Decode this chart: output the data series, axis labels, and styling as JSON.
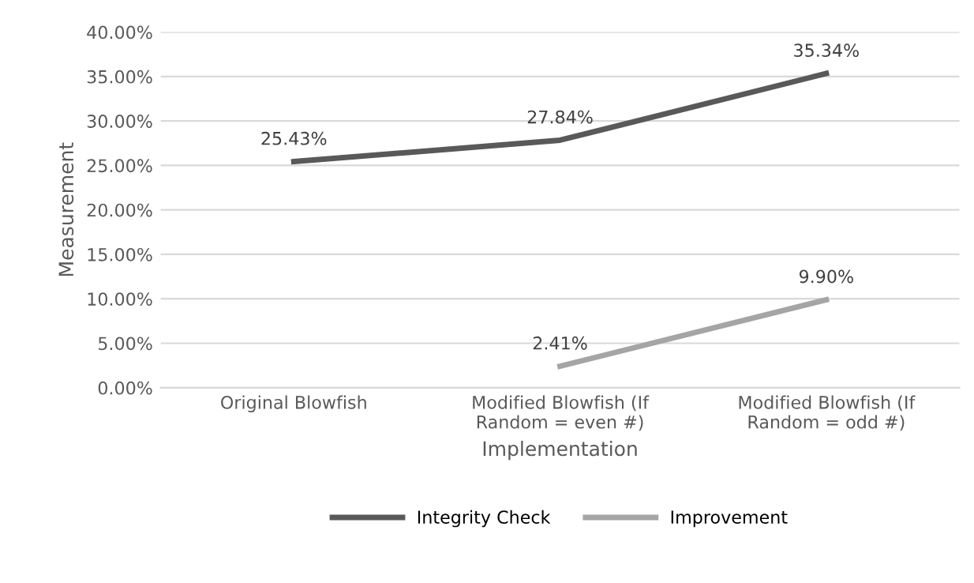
{
  "chart_data": {
    "type": "line",
    "xlabel": "Implementation",
    "ylabel": "Measurement",
    "categories": [
      "Original Blowfish",
      "Modified Blowfish (If Random = even #)",
      "Modified Blowfish (If Random = odd #)"
    ],
    "series": [
      {
        "name": "Integrity Check",
        "color": "#595959",
        "values": [
          25.43,
          27.84,
          35.34
        ],
        "value_labels": [
          "25.43%",
          "27.84%",
          "35.34%"
        ]
      },
      {
        "name": "Improvement",
        "color": "#a5a5a5",
        "values": [
          null,
          2.41,
          9.9
        ],
        "value_labels": [
          null,
          "2.41%",
          "9.90%"
        ]
      }
    ],
    "ylim": [
      0,
      40
    ],
    "yticks": [
      {
        "value": 0,
        "label": "0.00%"
      },
      {
        "value": 5,
        "label": "5.00%"
      },
      {
        "value": 10,
        "label": "10.00%"
      },
      {
        "value": 15,
        "label": "15.00%"
      },
      {
        "value": 20,
        "label": "20.00%"
      },
      {
        "value": 25,
        "label": "25.00%"
      },
      {
        "value": 30,
        "label": "30.00%"
      },
      {
        "value": 35,
        "label": "35.00%"
      },
      {
        "value": 40,
        "label": "40.00%"
      }
    ],
    "grid": "y",
    "legend": "bottom",
    "marker": "none",
    "line_style": "solid"
  }
}
